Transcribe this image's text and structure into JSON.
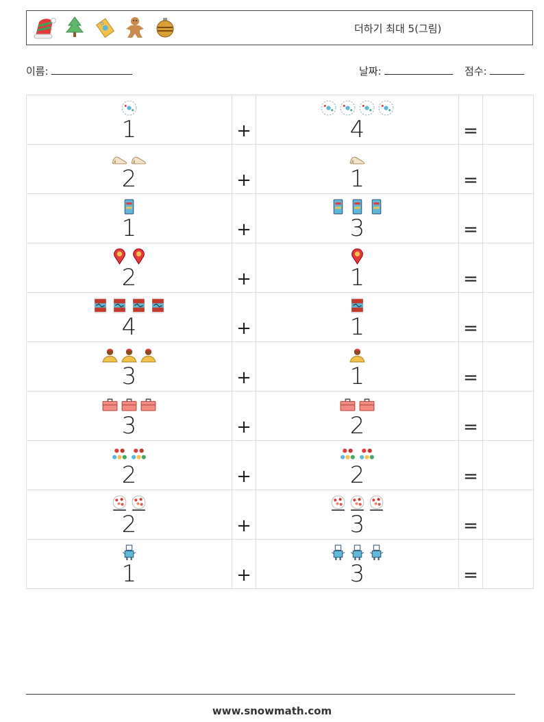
{
  "header": {
    "title": "더하기 최대 5(그림)",
    "icons": [
      "santa-hat-icon",
      "christmas-tree-icon",
      "gift-tag-icon",
      "gingerbread-man-icon",
      "ornament-ball-icon"
    ]
  },
  "meta": {
    "name_label": "이름:",
    "date_label": "날짜:",
    "score_label": "점수:"
  },
  "operators": {
    "plus": "+",
    "equals": "="
  },
  "problems": [
    {
      "a": "1",
      "b": "4",
      "icon": "snowflake-ball-icon"
    },
    {
      "a": "2",
      "b": "1",
      "icon": "high-heel-shoe-icon"
    },
    {
      "a": "1",
      "b": "3",
      "icon": "phone-card-icon"
    },
    {
      "a": "2",
      "b": "1",
      "icon": "map-pin-icon"
    },
    {
      "a": "4",
      "b": "1",
      "icon": "rug-icon"
    },
    {
      "a": "3",
      "b": "1",
      "icon": "worker-person-icon"
    },
    {
      "a": "3",
      "b": "2",
      "icon": "toolbox-icon"
    },
    {
      "a": "2",
      "b": "2",
      "icon": "ornaments-garland-icon"
    },
    {
      "a": "2",
      "b": "3",
      "icon": "flower-bouquet-icon"
    },
    {
      "a": "1",
      "b": "3",
      "icon": "robot-toy-icon"
    }
  ],
  "footer": {
    "site": "www.snowmath.com"
  }
}
